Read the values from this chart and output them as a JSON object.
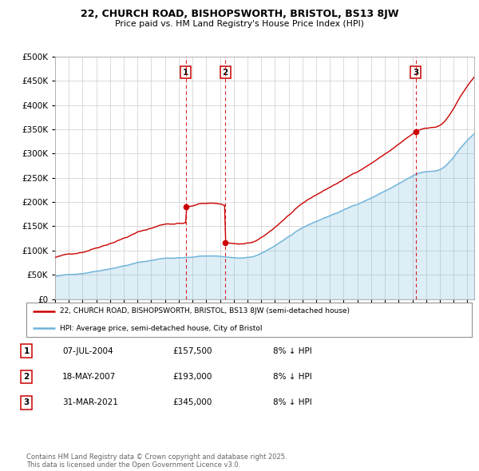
{
  "title_line1": "22, CHURCH ROAD, BISHOPSWORTH, BRISTOL, BS13 8JW",
  "title_line2": "Price paid vs. HM Land Registry's House Price Index (HPI)",
  "ylabel_ticks": [
    "£0",
    "£50K",
    "£100K",
    "£150K",
    "£200K",
    "£250K",
    "£300K",
    "£350K",
    "£400K",
    "£450K",
    "£500K"
  ],
  "ytick_values": [
    0,
    50000,
    100000,
    150000,
    200000,
    250000,
    300000,
    350000,
    400000,
    450000,
    500000
  ],
  "xmin": 1995,
  "xmax": 2025.5,
  "ymin": 0,
  "ymax": 500000,
  "sale_dates": [
    2004.52,
    2007.38,
    2021.25
  ],
  "sale_prices": [
    157500,
    193000,
    345000
  ],
  "sale_labels": [
    "1",
    "2",
    "3"
  ],
  "legend_line1": "22, CHURCH ROAD, BISHOPSWORTH, BRISTOL, BS13 8JW (semi-detached house)",
  "legend_line2": "HPI: Average price, semi-detached house, City of Bristol",
  "table_entries": [
    {
      "label": "1",
      "date": "07-JUL-2004",
      "price": "£157,500",
      "note": "8% ↓ HPI"
    },
    {
      "label": "2",
      "date": "18-MAY-2007",
      "price": "£193,000",
      "note": "8% ↓ HPI"
    },
    {
      "label": "3",
      "date": "31-MAR-2021",
      "price": "£345,000",
      "note": "8% ↓ HPI"
    }
  ],
  "footer": "Contains HM Land Registry data © Crown copyright and database right 2025.\nThis data is licensed under the Open Government Licence v3.0.",
  "hpi_color": "#6db3d9",
  "price_color": "#cc0000",
  "bg_color": "#ffffff",
  "grid_color": "#cccccc"
}
